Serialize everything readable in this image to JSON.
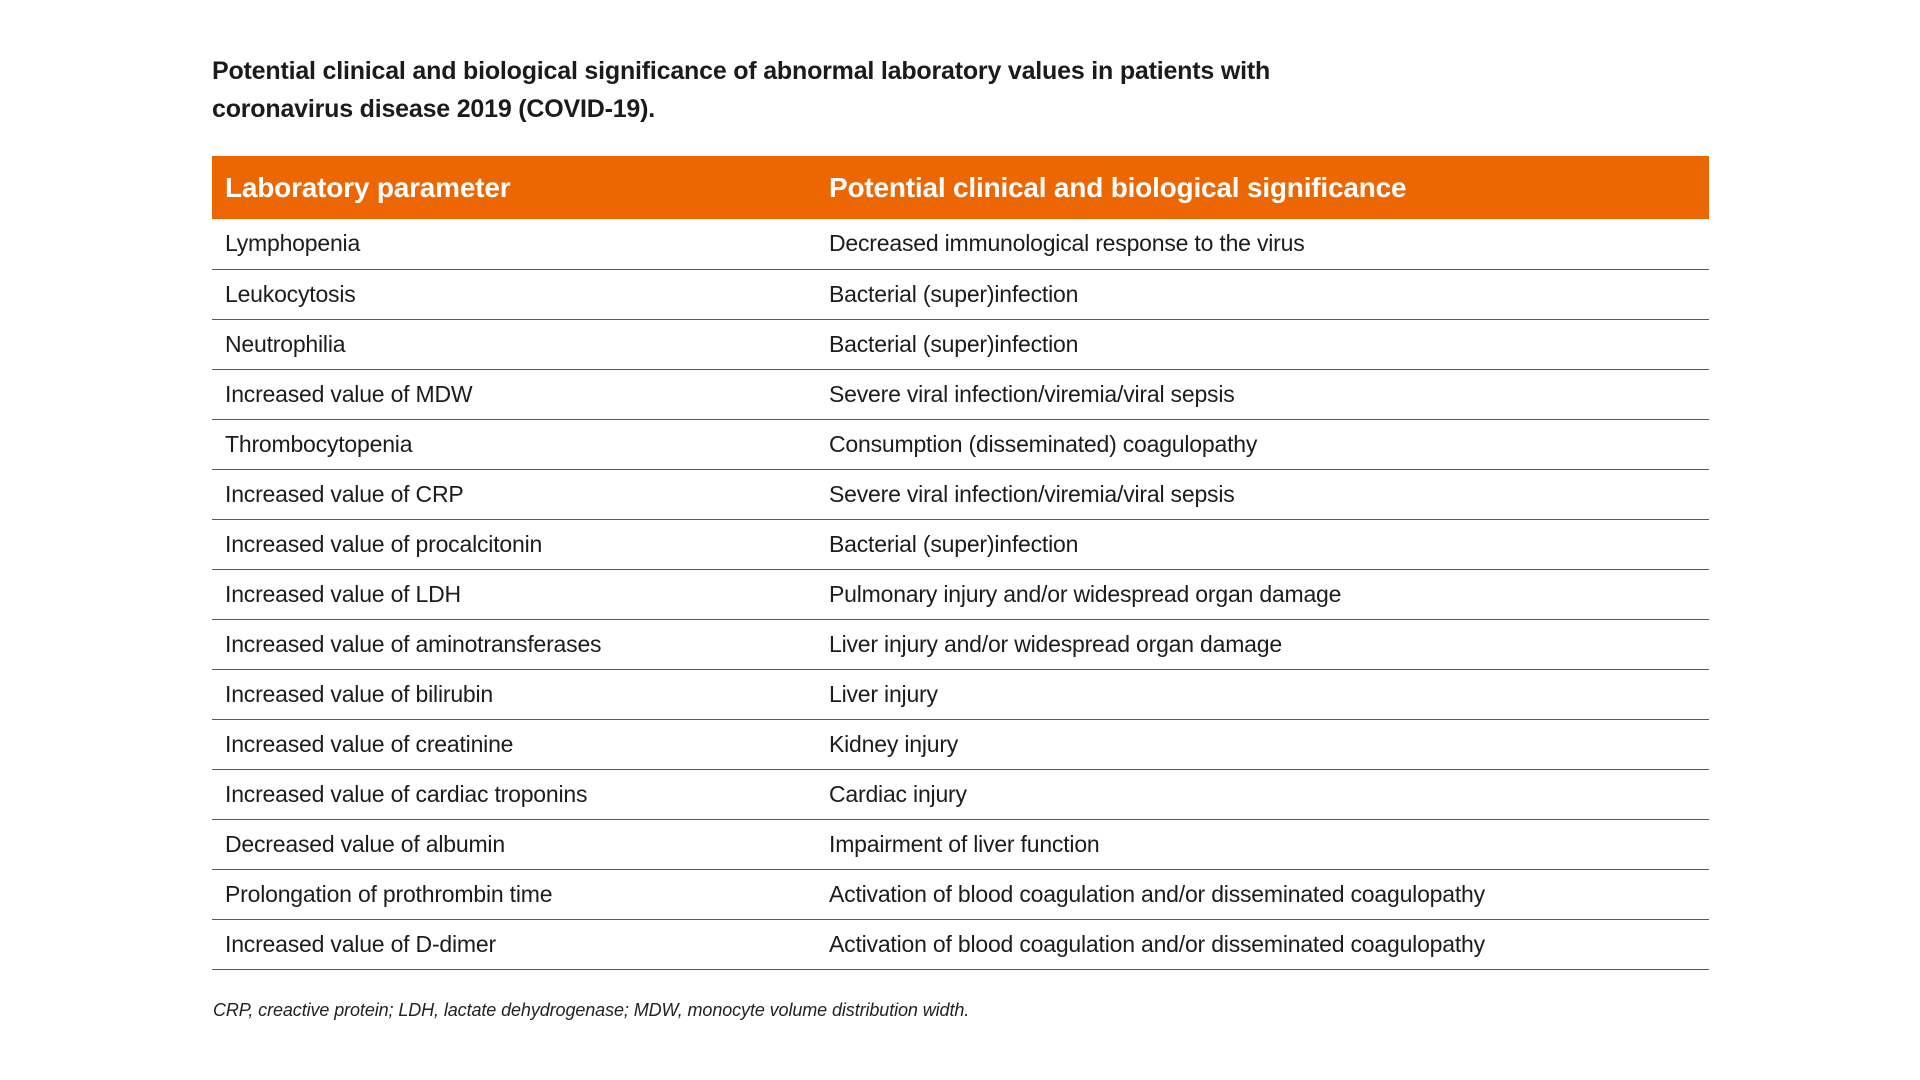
{
  "page": {
    "background_color": "#FFFFFF",
    "text_color": "#1C1C1C"
  },
  "title": {
    "line1": "Potential clinical and biological significance of abnormal laboratory values in patients with",
    "line2": "coronavirus disease 2019 (COVID-19)."
  },
  "table": {
    "accent_color": "#EC6602",
    "header_text_color": "#FFFFFF",
    "divider_color": "#5A5A5A",
    "headers": [
      "Laboratory parameter",
      "Potential clinical and biological significance"
    ],
    "rows": [
      [
        "Lymphopenia",
        "Decreased immunological response to the virus"
      ],
      [
        "Leukocytosis",
        "Bacterial (super)infection"
      ],
      [
        "Neutrophilia",
        "Bacterial (super)infection"
      ],
      [
        "Increased value of MDW",
        "Severe viral infection/viremia/viral sepsis"
      ],
      [
        "Thrombocytopenia",
        "Consumption (disseminated) coagulopathy"
      ],
      [
        "Increased value of CRP",
        "Severe viral infection/viremia/viral sepsis"
      ],
      [
        "Increased value of procalcitonin",
        "Bacterial (super)infection"
      ],
      [
        "Increased value of LDH",
        "Pulmonary injury and/or widespread organ damage"
      ],
      [
        "Increased value of aminotransferases",
        "Liver injury and/or widespread organ damage"
      ],
      [
        "Increased value of bilirubin",
        "Liver injury"
      ],
      [
        "Increased value of creatinine",
        "Kidney injury"
      ],
      [
        "Increased value of cardiac troponins",
        "Cardiac injury"
      ],
      [
        "Decreased value of albumin",
        "Impairment of liver function"
      ],
      [
        "Prolongation of prothrombin time",
        "Activation of blood coagulation and/or disseminated coagulopathy"
      ],
      [
        "Increased value of D-dimer",
        "Activation of blood coagulation and/or disseminated coagulopathy"
      ]
    ]
  },
  "footnote": "CRP, creactive protein; LDH, lactate dehydrogenase; MDW, monocyte volume distribution width."
}
